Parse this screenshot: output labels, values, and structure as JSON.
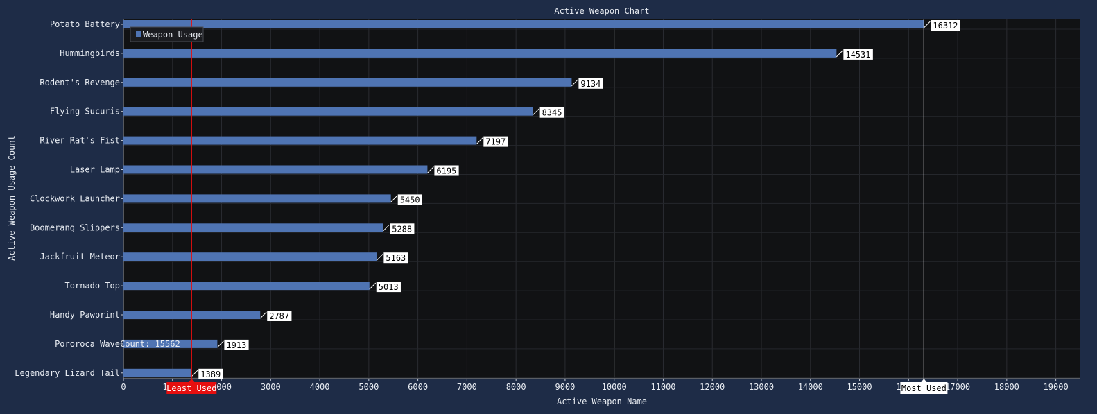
{
  "chart_data": {
    "type": "bar",
    "orientation": "horizontal",
    "title": "Active Weapon Chart",
    "xlabel": "Active Weapon Name",
    "ylabel": "Active Weapon Usage Count",
    "xlim": [
      0,
      19500
    ],
    "x_ticks": [
      0,
      1000,
      2000,
      3000,
      4000,
      5000,
      6000,
      7000,
      8000,
      9000,
      10000,
      11000,
      12000,
      13000,
      14000,
      15000,
      16000,
      17000,
      18000,
      19000
    ],
    "grid": true,
    "legend_position": "top-left",
    "categories": [
      "Potato Battery",
      "Hummingbirds",
      "Rodent's Revenge",
      "Flying Sucuris",
      "River Rat's Fist",
      "Laser Lamp",
      "Clockwork Launcher",
      "Boomerang Slippers",
      "Jackfruit Meteor",
      "Tornado Top",
      "Handy Pawprint",
      "Pororoca Wave",
      "Legendary Lizard Tail"
    ],
    "series": [
      {
        "name": "Weapon Usage",
        "values": [
          16312,
          14531,
          9134,
          8345,
          7197,
          6195,
          5450,
          5288,
          5163,
          5013,
          2787,
          1913,
          1389
        ]
      }
    ],
    "annotations": [
      {
        "label": "Least Used",
        "x": 1389,
        "color": "#e60f0f"
      },
      {
        "label": "Most Used",
        "x": 16312,
        "color": "#ffffff"
      },
      {
        "label": "Count: 15562",
        "x": 10000
      }
    ],
    "colors": {
      "bar": "#4f74b3",
      "background": "#1e2c47",
      "plot": "#111214"
    }
  }
}
